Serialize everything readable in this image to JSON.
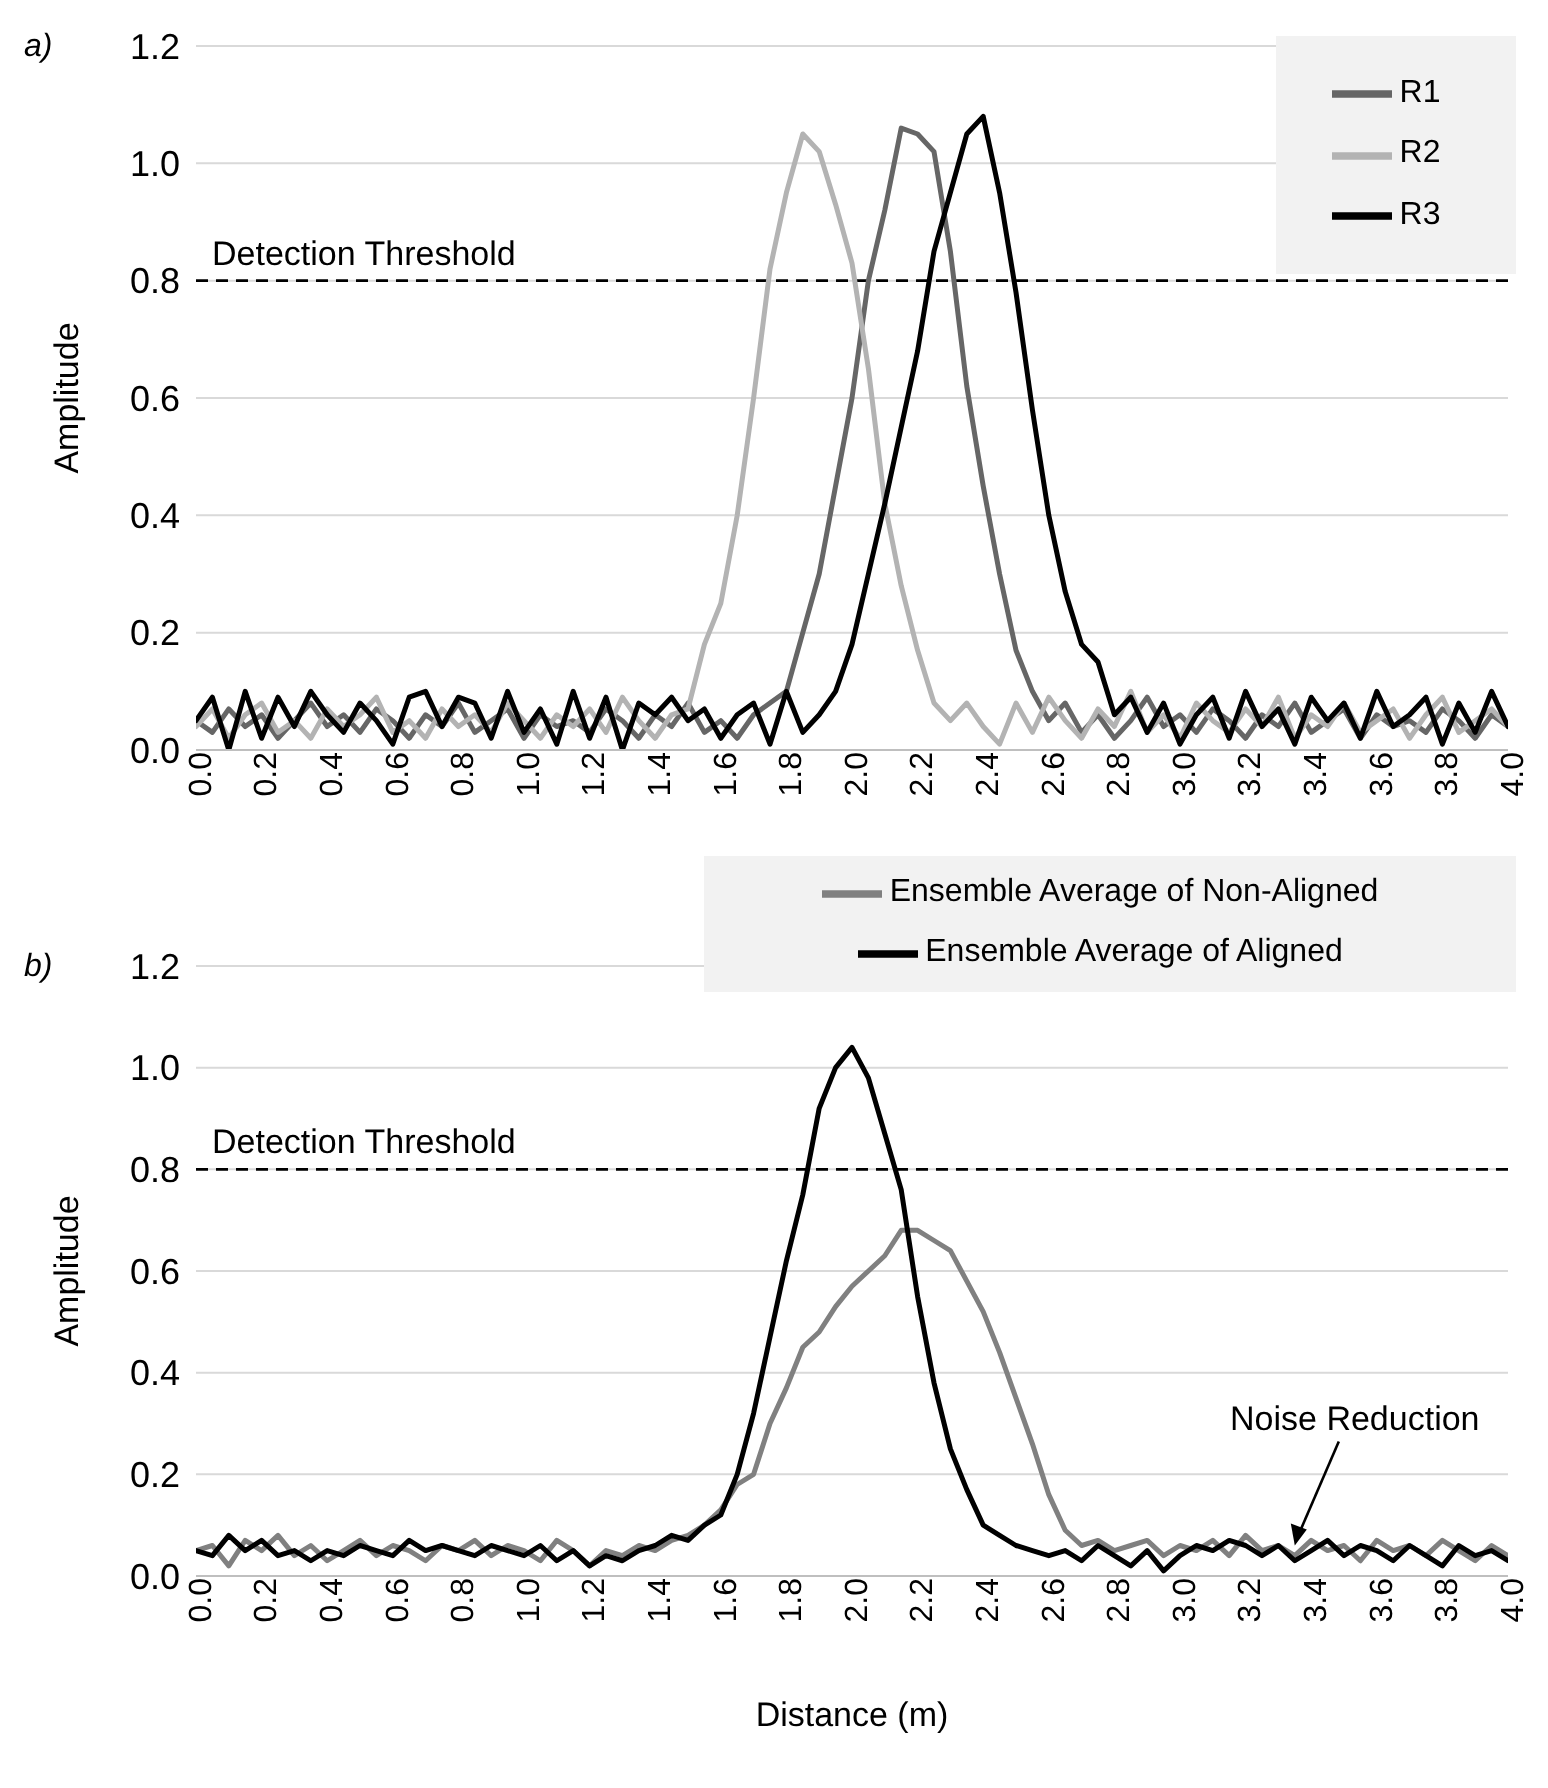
{
  "chart_data": [
    {
      "type": "line",
      "title": "a)",
      "ylabel": "Amplitude",
      "x": [
        0,
        0.05,
        0.1,
        0.15,
        0.2,
        0.25,
        0.3,
        0.35,
        0.4,
        0.45,
        0.5,
        0.55,
        0.6,
        0.65,
        0.7,
        0.75,
        0.8,
        0.85,
        0.9,
        0.95,
        1.0,
        1.05,
        1.1,
        1.15,
        1.2,
        1.25,
        1.3,
        1.35,
        1.4,
        1.45,
        1.5,
        1.55,
        1.6,
        1.65,
        1.7,
        1.75,
        1.8,
        1.85,
        1.9,
        1.95,
        2.0,
        2.05,
        2.1,
        2.15,
        2.2,
        2.25,
        2.3,
        2.35,
        2.4,
        2.45,
        2.5,
        2.55,
        2.6,
        2.65,
        2.7,
        2.75,
        2.8,
        2.85,
        2.9,
        2.95,
        3.0,
        3.05,
        3.1,
        3.15,
        3.2,
        3.25,
        3.3,
        3.35,
        3.4,
        3.45,
        3.5,
        3.55,
        3.6,
        3.65,
        3.7,
        3.75,
        3.8,
        3.85,
        3.9,
        3.95,
        4.0
      ],
      "series": [
        {
          "name": "R1",
          "color": "#666666",
          "values": [
            0.05,
            0.03,
            0.07,
            0.04,
            0.06,
            0.02,
            0.05,
            0.08,
            0.04,
            0.06,
            0.03,
            0.07,
            0.05,
            0.02,
            0.06,
            0.04,
            0.08,
            0.03,
            0.05,
            0.07,
            0.02,
            0.06,
            0.04,
            0.05,
            0.03,
            0.07,
            0.05,
            0.02,
            0.06,
            0.04,
            0.08,
            0.03,
            0.05,
            0.02,
            0.06,
            0.08,
            0.1,
            0.2,
            0.3,
            0.45,
            0.6,
            0.8,
            0.92,
            1.06,
            1.05,
            1.02,
            0.85,
            0.62,
            0.45,
            0.3,
            0.17,
            0.1,
            0.05,
            0.08,
            0.03,
            0.06,
            0.02,
            0.05,
            0.09,
            0.04,
            0.06,
            0.03,
            0.07,
            0.05,
            0.02,
            0.06,
            0.04,
            0.08,
            0.03,
            0.05,
            0.07,
            0.02,
            0.06,
            0.04,
            0.05,
            0.03,
            0.07,
            0.05,
            0.02,
            0.06,
            0.04
          ]
        },
        {
          "name": "R2",
          "color": "#b3b3b3",
          "values": [
            0.04,
            0.07,
            0.02,
            0.06,
            0.08,
            0.03,
            0.05,
            0.02,
            0.07,
            0.04,
            0.06,
            0.09,
            0.03,
            0.05,
            0.02,
            0.07,
            0.04,
            0.06,
            0.03,
            0.08,
            0.05,
            0.02,
            0.06,
            0.04,
            0.07,
            0.03,
            0.09,
            0.05,
            0.02,
            0.06,
            0.07,
            0.18,
            0.25,
            0.4,
            0.6,
            0.82,
            0.95,
            1.05,
            1.02,
            0.93,
            0.83,
            0.65,
            0.42,
            0.28,
            0.17,
            0.08,
            0.05,
            0.08,
            0.04,
            0.01,
            0.08,
            0.03,
            0.09,
            0.05,
            0.02,
            0.07,
            0.04,
            0.1,
            0.03,
            0.06,
            0.02,
            0.08,
            0.05,
            0.03,
            0.07,
            0.04,
            0.09,
            0.02,
            0.06,
            0.04,
            0.08,
            0.03,
            0.05,
            0.07,
            0.02,
            0.06,
            0.09,
            0.03,
            0.05,
            0.07,
            0.04
          ]
        },
        {
          "name": "R3",
          "color": "#000000",
          "values": [
            0.05,
            0.09,
            0.0,
            0.1,
            0.02,
            0.09,
            0.04,
            0.1,
            0.06,
            0.03,
            0.08,
            0.05,
            0.01,
            0.09,
            0.1,
            0.04,
            0.09,
            0.08,
            0.02,
            0.1,
            0.03,
            0.07,
            0.01,
            0.1,
            0.02,
            0.09,
            0.0,
            0.08,
            0.06,
            0.09,
            0.05,
            0.07,
            0.02,
            0.06,
            0.08,
            0.01,
            0.1,
            0.03,
            0.06,
            0.1,
            0.18,
            0.3,
            0.42,
            0.55,
            0.68,
            0.85,
            0.95,
            1.05,
            1.08,
            0.95,
            0.78,
            0.58,
            0.4,
            0.27,
            0.18,
            0.15,
            0.06,
            0.09,
            0.03,
            0.08,
            0.01,
            0.06,
            0.09,
            0.02,
            0.1,
            0.04,
            0.07,
            0.01,
            0.09,
            0.05,
            0.08,
            0.02,
            0.1,
            0.04,
            0.06,
            0.09,
            0.01,
            0.08,
            0.03,
            0.1,
            0.04
          ]
        }
      ],
      "xlim": [
        0,
        4.0
      ],
      "xticks": [
        {
          "value": 0,
          "label": "0.0"
        },
        {
          "value": 0.2,
          "label": "0.2"
        },
        {
          "value": 0.4,
          "label": "0.4"
        },
        {
          "value": 0.6,
          "label": "0.6"
        },
        {
          "value": 0.8,
          "label": "0.8"
        },
        {
          "value": 1.0,
          "label": "1.0"
        },
        {
          "value": 1.2,
          "label": "1.2"
        },
        {
          "value": 1.4,
          "label": "1.4"
        },
        {
          "value": 1.6,
          "label": "1.6"
        },
        {
          "value": 1.8,
          "label": "1.8"
        },
        {
          "value": 2.0,
          "label": "2.0"
        },
        {
          "value": 2.2,
          "label": "2.2"
        },
        {
          "value": 2.4,
          "label": "2.4"
        },
        {
          "value": 2.6,
          "label": "2.6"
        },
        {
          "value": 2.8,
          "label": "2.8"
        },
        {
          "value": 3.0,
          "label": "3.0"
        },
        {
          "value": 3.2,
          "label": "3.2"
        },
        {
          "value": 3.4,
          "label": "3.4"
        },
        {
          "value": 3.6,
          "label": "3.6"
        },
        {
          "value": 3.8,
          "label": "3.8"
        },
        {
          "value": 4.0,
          "label": "4.0"
        }
      ],
      "ylim": [
        0,
        1.2
      ],
      "yticks": [
        {
          "value": 0,
          "label": "0.0"
        },
        {
          "value": 0.2,
          "label": "0.2"
        },
        {
          "value": 0.4,
          "label": "0.4"
        },
        {
          "value": 0.6,
          "label": "0.6"
        },
        {
          "value": 0.8,
          "label": "0.8"
        },
        {
          "value": 1.0,
          "label": "1.0"
        },
        {
          "value": 1.2,
          "label": "1.2"
        }
      ],
      "ref_lines": [
        {
          "axis": "y",
          "value": 0.8,
          "label": "Detection Threshold",
          "color": "#000000",
          "line_style": "dashed"
        }
      ],
      "grid": "y",
      "legend": "top right",
      "marker": "none",
      "line_style": "solid"
    },
    {
      "type": "line",
      "title": "b)",
      "ylabel": "Amplitude",
      "xlabel": "Distance (m)",
      "x": [
        0,
        0.05,
        0.1,
        0.15,
        0.2,
        0.25,
        0.3,
        0.35,
        0.4,
        0.45,
        0.5,
        0.55,
        0.6,
        0.65,
        0.7,
        0.75,
        0.8,
        0.85,
        0.9,
        0.95,
        1.0,
        1.05,
        1.1,
        1.15,
        1.2,
        1.25,
        1.3,
        1.35,
        1.4,
        1.45,
        1.5,
        1.55,
        1.6,
        1.65,
        1.7,
        1.75,
        1.8,
        1.85,
        1.9,
        1.95,
        2.0,
        2.05,
        2.1,
        2.15,
        2.2,
        2.25,
        2.3,
        2.35,
        2.4,
        2.45,
        2.5,
        2.55,
        2.6,
        2.65,
        2.7,
        2.75,
        2.8,
        2.85,
        2.9,
        2.95,
        3.0,
        3.05,
        3.1,
        3.15,
        3.2,
        3.25,
        3.3,
        3.35,
        3.4,
        3.45,
        3.5,
        3.55,
        3.6,
        3.65,
        3.7,
        3.75,
        3.8,
        3.85,
        3.9,
        3.95,
        4.0
      ],
      "series": [
        {
          "name": "Ensemble Average of Non-Aligned",
          "color": "#808080",
          "values": [
            0.05,
            0.06,
            0.02,
            0.07,
            0.05,
            0.08,
            0.04,
            0.06,
            0.03,
            0.05,
            0.07,
            0.04,
            0.06,
            0.05,
            0.03,
            0.06,
            0.05,
            0.07,
            0.04,
            0.06,
            0.05,
            0.03,
            0.07,
            0.05,
            0.02,
            0.05,
            0.04,
            0.06,
            0.05,
            0.07,
            0.08,
            0.1,
            0.13,
            0.18,
            0.2,
            0.3,
            0.37,
            0.45,
            0.48,
            0.53,
            0.57,
            0.6,
            0.63,
            0.68,
            0.68,
            0.66,
            0.64,
            0.58,
            0.52,
            0.44,
            0.35,
            0.26,
            0.16,
            0.09,
            0.06,
            0.07,
            0.05,
            0.06,
            0.07,
            0.04,
            0.06,
            0.05,
            0.07,
            0.04,
            0.08,
            0.05,
            0.06,
            0.04,
            0.07,
            0.05,
            0.06,
            0.03,
            0.07,
            0.05,
            0.06,
            0.04,
            0.07,
            0.05,
            0.03,
            0.06,
            0.04
          ]
        },
        {
          "name": "Ensemble Average of Aligned",
          "color": "#000000",
          "values": [
            0.05,
            0.04,
            0.08,
            0.05,
            0.07,
            0.04,
            0.05,
            0.03,
            0.05,
            0.04,
            0.06,
            0.05,
            0.04,
            0.07,
            0.05,
            0.06,
            0.05,
            0.04,
            0.06,
            0.05,
            0.04,
            0.06,
            0.03,
            0.05,
            0.02,
            0.04,
            0.03,
            0.05,
            0.06,
            0.08,
            0.07,
            0.1,
            0.12,
            0.2,
            0.32,
            0.47,
            0.62,
            0.75,
            0.92,
            1.0,
            1.04,
            0.98,
            0.87,
            0.76,
            0.55,
            0.38,
            0.25,
            0.17,
            0.1,
            0.08,
            0.06,
            0.05,
            0.04,
            0.05,
            0.03,
            0.06,
            0.04,
            0.02,
            0.05,
            0.01,
            0.04,
            0.06,
            0.05,
            0.07,
            0.06,
            0.04,
            0.06,
            0.03,
            0.05,
            0.07,
            0.04,
            0.06,
            0.05,
            0.03,
            0.06,
            0.04,
            0.02,
            0.06,
            0.04,
            0.05,
            0.03
          ]
        }
      ],
      "xlim": [
        0,
        4.0
      ],
      "xticks": [
        {
          "value": 0,
          "label": "0.0"
        },
        {
          "value": 0.2,
          "label": "0.2"
        },
        {
          "value": 0.4,
          "label": "0.4"
        },
        {
          "value": 0.6,
          "label": "0.6"
        },
        {
          "value": 0.8,
          "label": "0.8"
        },
        {
          "value": 1.0,
          "label": "1.0"
        },
        {
          "value": 1.2,
          "label": "1.2"
        },
        {
          "value": 1.4,
          "label": "1.4"
        },
        {
          "value": 1.6,
          "label": "1.6"
        },
        {
          "value": 1.8,
          "label": "1.8"
        },
        {
          "value": 2.0,
          "label": "2.0"
        },
        {
          "value": 2.2,
          "label": "2.2"
        },
        {
          "value": 2.4,
          "label": "2.4"
        },
        {
          "value": 2.6,
          "label": "2.6"
        },
        {
          "value": 2.8,
          "label": "2.8"
        },
        {
          "value": 3.0,
          "label": "3.0"
        },
        {
          "value": 3.2,
          "label": "3.2"
        },
        {
          "value": 3.4,
          "label": "3.4"
        },
        {
          "value": 3.6,
          "label": "3.6"
        },
        {
          "value": 3.8,
          "label": "3.8"
        },
        {
          "value": 4.0,
          "label": "4.0"
        }
      ],
      "ylim": [
        0,
        1.2
      ],
      "yticks": [
        {
          "value": 0,
          "label": "0.0"
        },
        {
          "value": 0.2,
          "label": "0.2"
        },
        {
          "value": 0.4,
          "label": "0.4"
        },
        {
          "value": 0.6,
          "label": "0.6"
        },
        {
          "value": 0.8,
          "label": "0.8"
        },
        {
          "value": 1.0,
          "label": "1.0"
        },
        {
          "value": 1.2,
          "label": "1.2"
        }
      ],
      "ref_lines": [
        {
          "axis": "y",
          "value": 0.8,
          "label": "Detection Threshold",
          "color": "#000000",
          "line_style": "dashed"
        }
      ],
      "annotations": [
        {
          "text": "Noise Reduction",
          "x": 3.35,
          "y": 0.06
        }
      ],
      "grid": "y",
      "legend": "top right",
      "marker": "none",
      "line_style": "solid"
    }
  ]
}
